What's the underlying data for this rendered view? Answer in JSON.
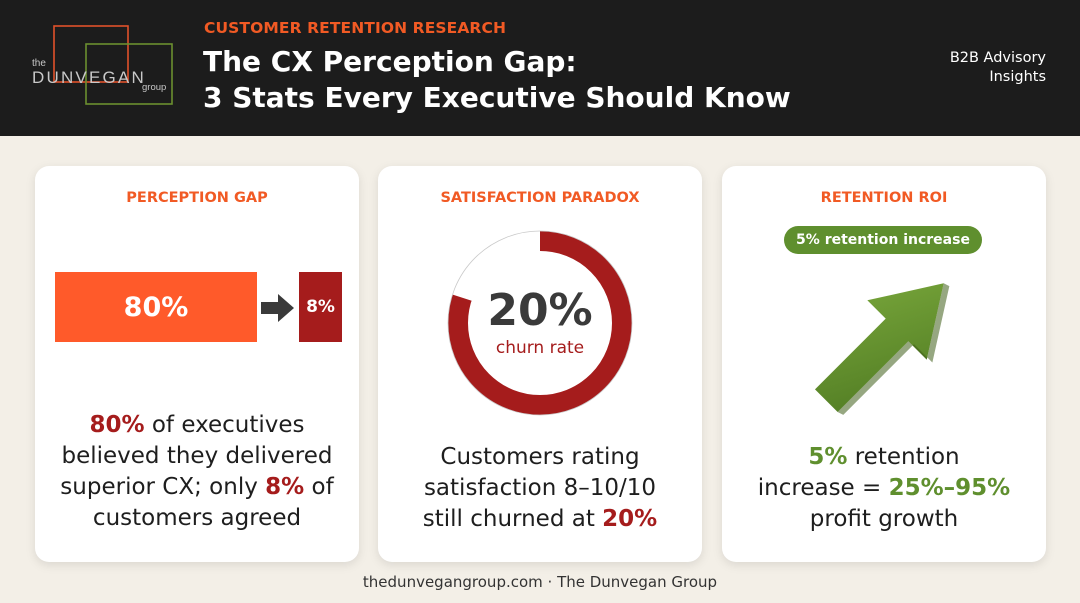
{
  "header": {
    "logo": {
      "line1": "the",
      "line2": "DUNVEGAN",
      "line3": "group",
      "icon": "overlapping-squares-logo"
    },
    "kicker": "CUSTOMER RETENTION RESEARCH",
    "title_line1": "The CX Perception Gap:",
    "title_line2": "3 Stats Every Executive Should Know",
    "tagline_line1": "B2B Advisory",
    "tagline_line2": "Insights"
  },
  "colors": {
    "accent_orange": "#f15a24",
    "bar_orange": "#ff5a2a",
    "dark_red": "#a51c1c",
    "green": "#5f8f2e",
    "header_bg": "#1c1c1c",
    "page_bg": "#f3efe7"
  },
  "cards": {
    "perception": {
      "title": "PERCEPTION GAP",
      "bar_big_label": "80%",
      "bar_small_label": "8%",
      "bar_big_value": 80,
      "bar_small_value": 8,
      "arrow_icon": "arrow-right-icon",
      "text": {
        "l1_hl": "80%",
        "l1_rest": " of executives",
        "l2": "believed they delivered",
        "l3_pre": "superior CX; only ",
        "l3_hl": "8%",
        "l3_post": " of",
        "l4": "customers agreed"
      }
    },
    "satisfaction": {
      "title": "SATISFACTION PARADOX",
      "donut_value": "20%",
      "donut_label": "churn rate",
      "donut_percent": 20,
      "text": {
        "l1": "Customers rating",
        "l2": "satisfaction 8–10/10",
        "l3_pre": "still churned at ",
        "l3_hl": "20%"
      }
    },
    "retention": {
      "title": "RETENTION ROI",
      "pill": "5% retention increase",
      "arrow_icon": "growth-arrow-icon",
      "text": {
        "l1_hl": "5%",
        "l1_rest": " retention",
        "l2_pre": "increase = ",
        "l2_hl": "25%–95%",
        "l3": "profit growth"
      }
    }
  },
  "footer": "thedunvegangroup.com · The Dunvegan Group"
}
